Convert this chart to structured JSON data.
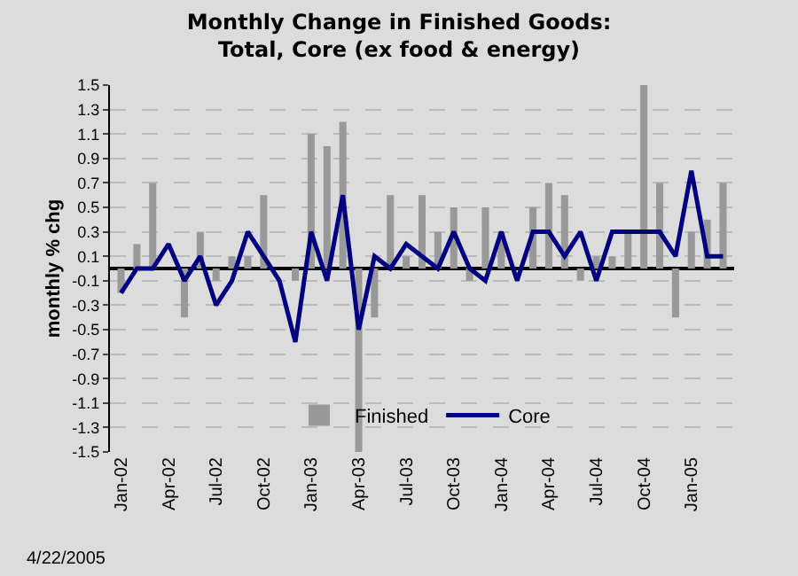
{
  "chart_data": {
    "type": "bar",
    "title": "Monthly Change in Finished Goods:\nTotal, Core (ex food & energy)",
    "ylabel": "monthly % chg",
    "annotations": [
      "4/22/2005"
    ],
    "categories": [
      "Jan-02",
      null,
      null,
      "Apr-02",
      null,
      null,
      "Jul-02",
      null,
      null,
      "Oct-02",
      null,
      null,
      "Jan-03",
      null,
      null,
      "Apr-03",
      null,
      null,
      "Jul-03",
      null,
      null,
      "Oct-03",
      null,
      null,
      "Jan-04",
      null,
      null,
      "Apr-04",
      null,
      null,
      "Jul-04",
      null,
      null,
      "Oct-04",
      null,
      null,
      "Jan-05",
      null,
      null
    ],
    "series": [
      {
        "name": "Finished",
        "color": "#999999",
        "values": [
          -0.2,
          0.2,
          0.7,
          0.0,
          -0.4,
          0.3,
          -0.1,
          0.1,
          0.1,
          0.6,
          0.0,
          -0.1,
          1.1,
          1.0,
          1.2,
          -1.5,
          -0.4,
          0.6,
          0.1,
          0.6,
          0.3,
          0.5,
          -0.1,
          0.5,
          0.3,
          0.0,
          0.5,
          0.7,
          0.6,
          -0.1,
          0.1,
          0.1,
          0.3,
          1.5,
          0.7,
          -0.4,
          0.3,
          0.4,
          0.7
        ]
      },
      {
        "name": "Core",
        "type": "line",
        "color": "#000080",
        "values": [
          -0.2,
          0.0,
          0.0,
          0.2,
          -0.1,
          0.1,
          -0.3,
          -0.1,
          0.3,
          0.1,
          -0.1,
          -0.6,
          0.3,
          -0.1,
          0.6,
          -0.5,
          0.1,
          0.0,
          0.2,
          0.1,
          0.0,
          0.3,
          0.0,
          -0.1,
          0.3,
          -0.1,
          0.3,
          0.3,
          0.1,
          0.3,
          -0.1,
          0.3,
          0.3,
          0.3,
          0.3,
          0.1,
          0.8,
          0.1,
          0.1
        ]
      }
    ],
    "ylim": [
      -1.5,
      1.5
    ],
    "yticks": [
      -1.5,
      -1.3,
      -1.1,
      -0.9,
      -0.7,
      -0.5,
      -0.3,
      -0.1,
      0.1,
      0.3,
      0.5,
      0.7,
      0.9,
      1.1,
      1.3,
      1.5
    ],
    "grid": "y",
    "legend": "bottom",
    "line_style": "solid",
    "marker": "none"
  }
}
